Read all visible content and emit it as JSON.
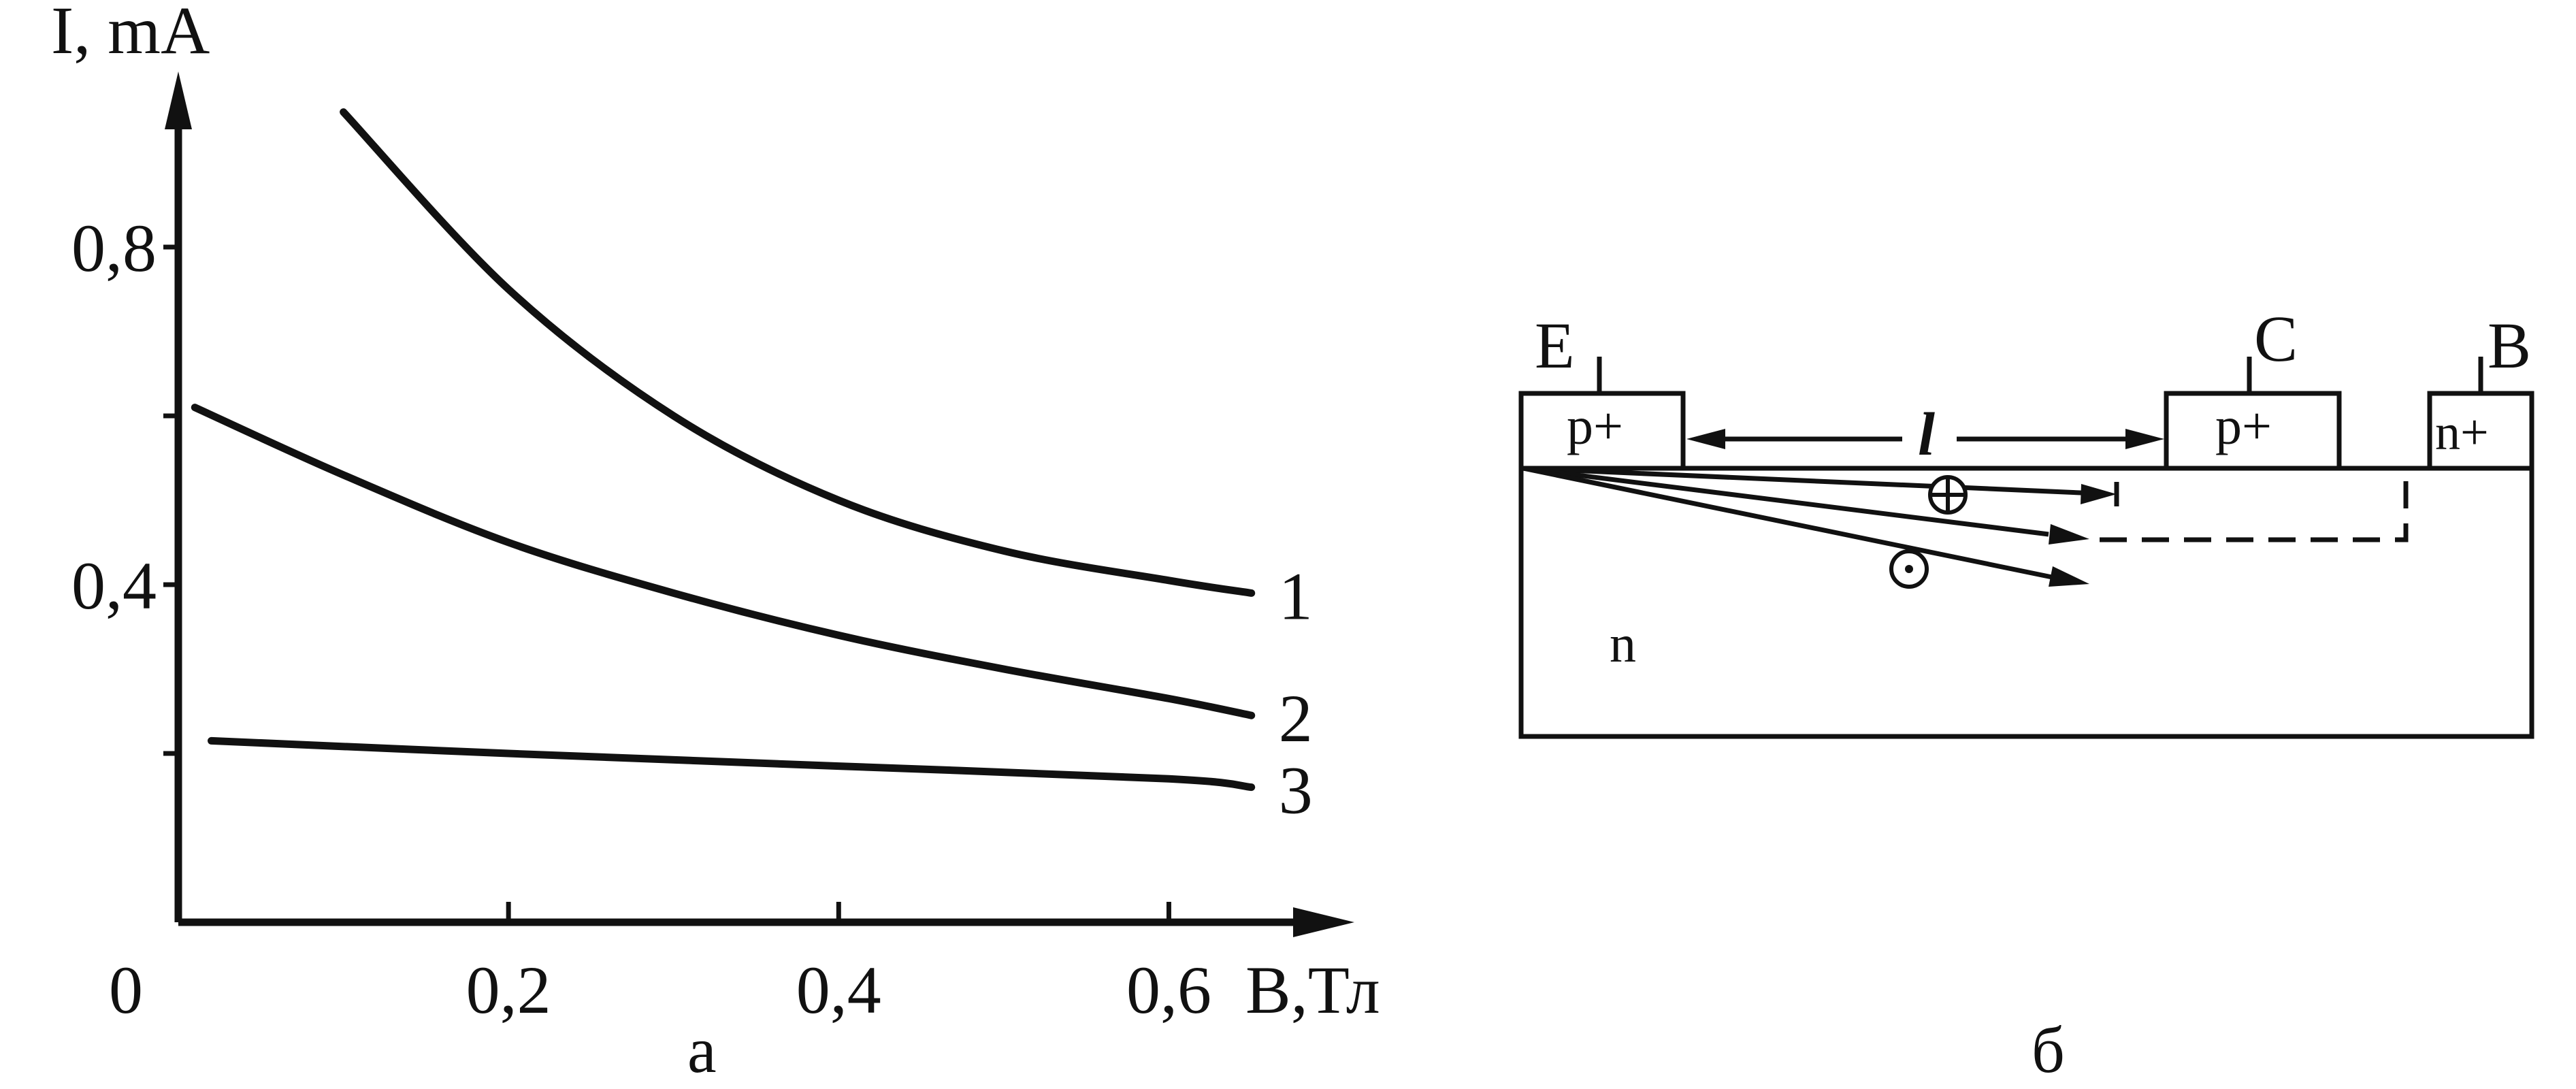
{
  "chart_data": {
    "type": "line",
    "ylabel": "I, mA",
    "xlabel": "B,Тл",
    "origin_label": "0",
    "xlim": [
      0,
      0.66
    ],
    "ylim": [
      0,
      1.0
    ],
    "x_ticks": [
      0.2,
      0.4,
      0.6
    ],
    "x_tick_labels": [
      "0,2",
      "0,4",
      "0,6"
    ],
    "y_ticks": [
      0.2,
      0.4,
      0.6,
      0.8
    ],
    "y_tick_labels": [
      "",
      "0,4",
      "",
      "0,8"
    ],
    "grid": false,
    "series": [
      {
        "name": "1",
        "x": [
          0.1,
          0.2,
          0.3,
          0.4,
          0.5,
          0.6,
          0.65
        ],
        "y": [
          0.96,
          0.75,
          0.6,
          0.5,
          0.44,
          0.405,
          0.39
        ]
      },
      {
        "name": "2",
        "x": [
          0.01,
          0.1,
          0.2,
          0.3,
          0.4,
          0.5,
          0.6,
          0.65
        ],
        "y": [
          0.61,
          0.53,
          0.45,
          0.39,
          0.34,
          0.3,
          0.265,
          0.245
        ]
      },
      {
        "name": "3",
        "x": [
          0.02,
          0.2,
          0.4,
          0.6,
          0.65
        ],
        "y": [
          0.215,
          0.2,
          0.185,
          0.17,
          0.16
        ]
      }
    ],
    "panel_label": "а"
  },
  "diagram": {
    "panel_label": "б",
    "terminals": {
      "emitter": "E",
      "collector": "C",
      "base": "B"
    },
    "regions": {
      "emitter": "p+",
      "collector": "p+",
      "base_contact": "n+",
      "substrate": "n"
    },
    "distance_label": "l",
    "carrier_symbols": {
      "field_into_page": "⊕",
      "field_out_of_page": "⊙"
    }
  }
}
